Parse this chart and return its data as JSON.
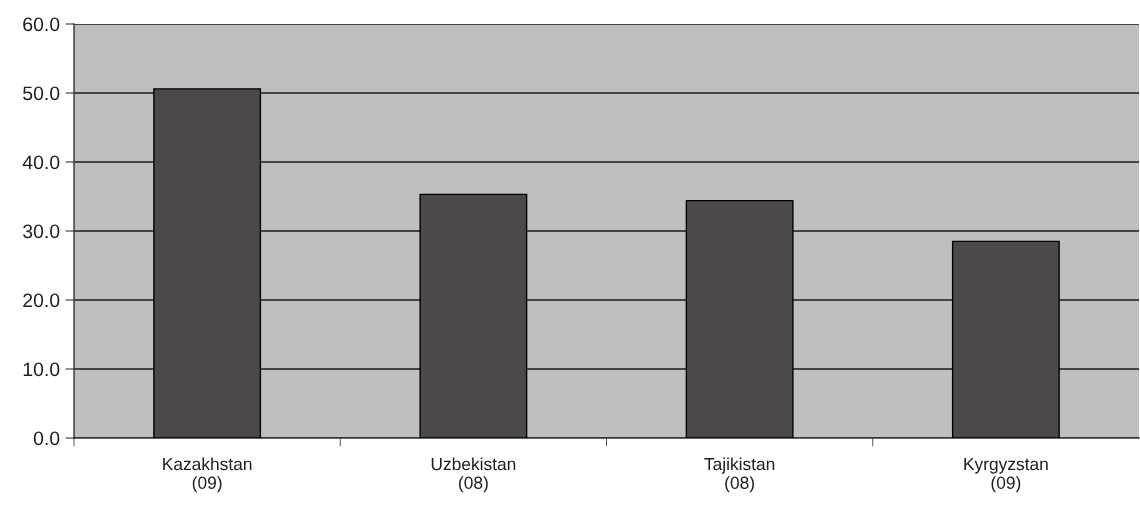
{
  "chart_data": {
    "type": "bar",
    "categories": [
      "Kazakhstan\n(09)",
      "Uzbekistan\n(08)",
      "Tajikistan\n(08)",
      "Kyrgyzstan\n(09)"
    ],
    "values": [
      50.6,
      35.3,
      34.4,
      28.5
    ],
    "color": "#4d4948",
    "ylim": [
      0,
      60
    ],
    "yticks": [
      {
        "value": 0,
        "label": "0.0"
      },
      {
        "value": 10,
        "label": "10.0"
      },
      {
        "value": 20,
        "label": "20.0"
      },
      {
        "value": 30,
        "label": "30.0"
      },
      {
        "value": 40,
        "label": "40.0"
      },
      {
        "value": 50,
        "label": "50.0"
      },
      {
        "value": 60,
        "label": "60.0"
      }
    ],
    "grid": "y"
  }
}
